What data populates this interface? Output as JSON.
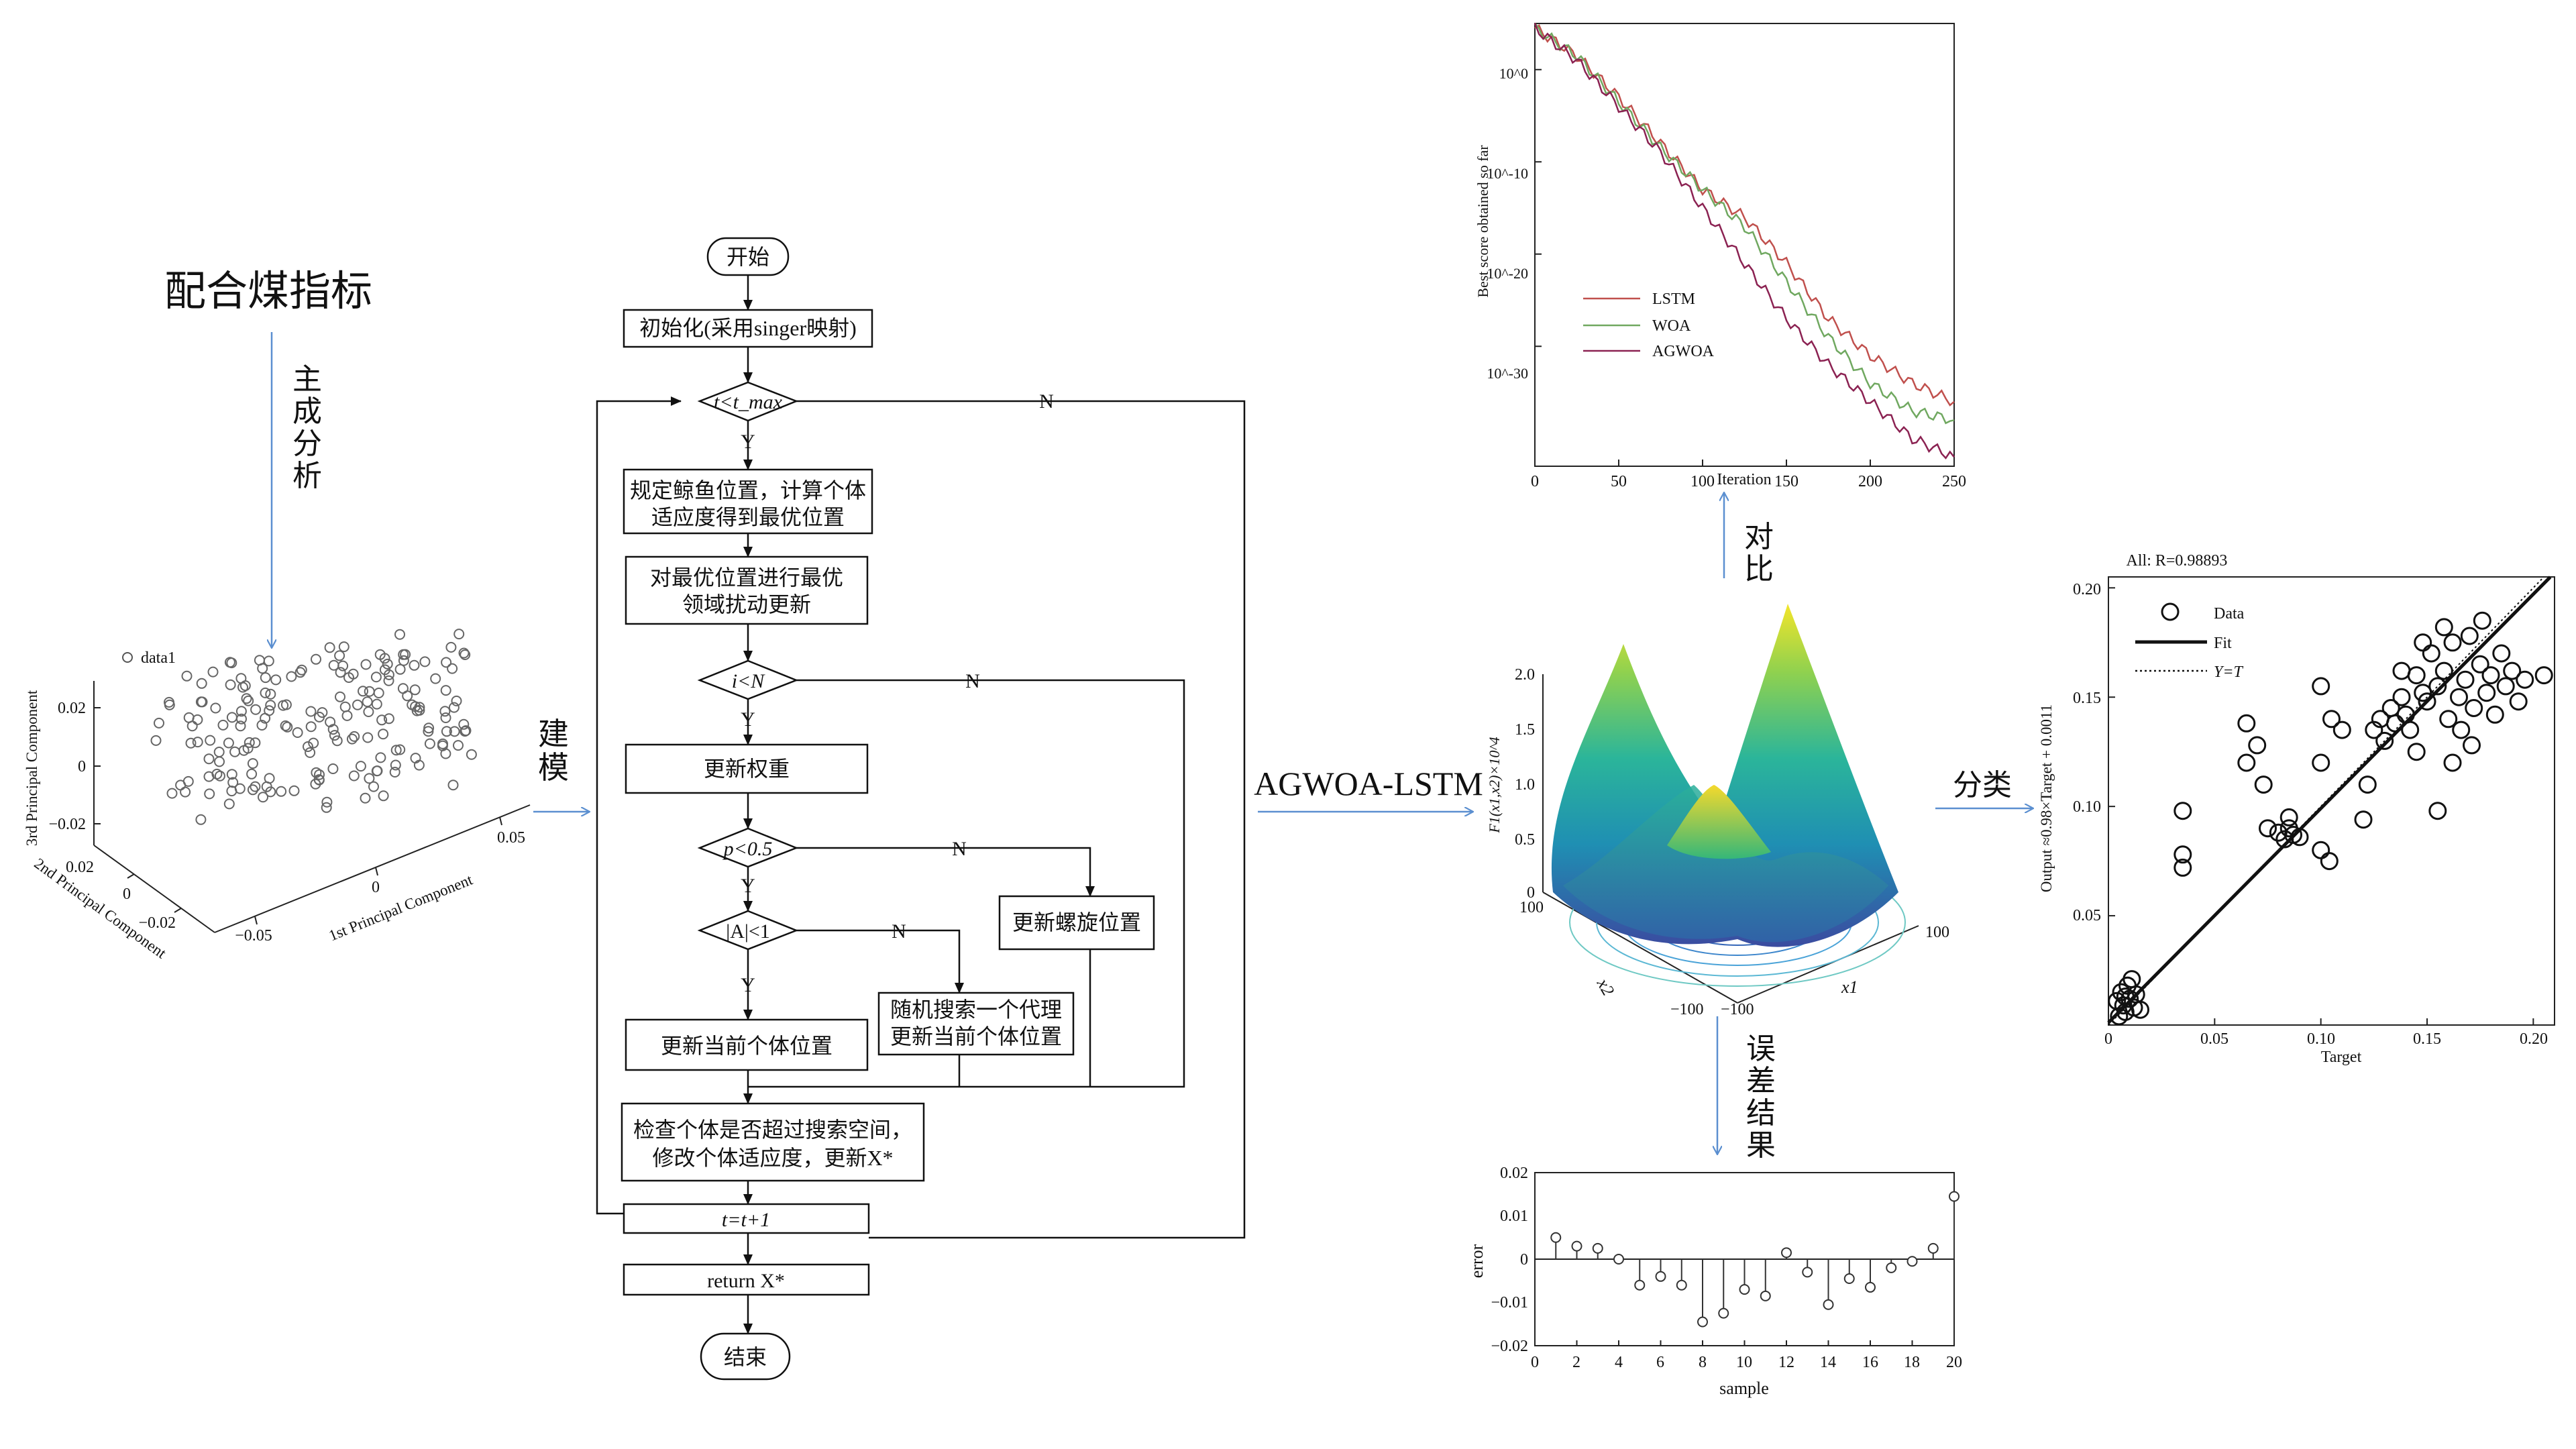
{
  "left": {
    "title": "配合煤指标",
    "pca_label": [
      "主",
      "成",
      "分",
      "析"
    ],
    "pca_chart": {
      "legend": "data1",
      "axis1_label": "1st Principal Component",
      "axis2_label": "2nd Principal Component",
      "axis3_label": "3rd Principal Component",
      "axis1_ticks": [
        "−0.05",
        "0",
        "0.05"
      ],
      "axis2_ticks": [
        "0.02",
        "0",
        "−0.02"
      ],
      "axis3_ticks": [
        "0.02",
        "0",
        "−0.02"
      ]
    },
    "model_label": [
      "建",
      "模"
    ]
  },
  "flowchart": {
    "start": "开始",
    "init": "初始化(采用singer映射)",
    "cond_t": "t<t_max",
    "step_whale": [
      "规定鲸鱼位置，计算个体",
      "适应度得到最优位置"
    ],
    "step_perturb": [
      "对最优位置进行最优",
      "领域扰动更新"
    ],
    "cond_i": "i<N",
    "update_weight": "更新权重",
    "cond_p": "p<0.5",
    "update_spiral": "更新螺旋位置",
    "cond_a": "|A|<1",
    "random_search": [
      "随机搜索一个代理",
      "更新当前个体位置"
    ],
    "update_current": "更新当前个体位置",
    "check": [
      "检查个体是否超过搜索空间，",
      "修改个体适应度，更新X*"
    ],
    "t_incr": "t=t+1",
    "return": "return X*",
    "end": "结束",
    "yes": "Y",
    "no": "N"
  },
  "middle": {
    "model_name": "AGWOA-LSTM",
    "compare_label": [
      "对",
      "比"
    ],
    "error_label": [
      "误",
      "差",
      "结",
      "果"
    ],
    "classify_label": "分类",
    "surface": {
      "zlabel": "F1(x1,x2)×10^4",
      "z_ticks": [
        "2.0",
        "1.5",
        "1.0",
        "0.5",
        "0"
      ],
      "x1_label": "x1",
      "x2_label": "x2",
      "x1_ticks": [
        "100",
        "−100"
      ],
      "x2_ticks": [
        "100",
        "−100"
      ]
    }
  },
  "chart_data": [
    {
      "type": "line",
      "xlabel": "Iteration",
      "ylabel": "Best score obtained so far",
      "xlim": [
        0,
        250
      ],
      "x_ticks": [
        "0",
        "50",
        "100",
        "150",
        "200",
        "250"
      ],
      "y_scale": "log",
      "y_ticks": [
        "10^0",
        "10^-10",
        "10^-20",
        "10^-30"
      ],
      "legend_position": "lower-left",
      "series": [
        {
          "name": "LSTM",
          "color": "#c0504d",
          "x": [
            0,
            25,
            50,
            75,
            100,
            125,
            150,
            175,
            200,
            225,
            250
          ],
          "y_log10": [
            4.5,
            1.5,
            -3,
            -8,
            -13,
            -16,
            -21,
            -27,
            -31,
            -34,
            -36
          ]
        },
        {
          "name": "WOA",
          "color": "#70a860",
          "x": [
            0,
            25,
            50,
            75,
            100,
            125,
            150,
            175,
            200,
            225,
            250
          ],
          "y_log10": [
            4.5,
            1.5,
            -3.5,
            -8.5,
            -13,
            -17,
            -23,
            -29,
            -34,
            -37,
            -38
          ]
        },
        {
          "name": "AGWOA",
          "color": "#8b2252",
          "x": [
            0,
            25,
            50,
            75,
            100,
            125,
            150,
            175,
            200,
            225,
            250
          ],
          "y_log10": [
            4.5,
            1,
            -4,
            -9,
            -15,
            -21,
            -27,
            -32,
            -36,
            -40,
            -42
          ]
        }
      ]
    },
    {
      "type": "scatter",
      "title": "All: R=0.98893",
      "xlabel": "Target",
      "ylabel": "Output ≈0.98×Target + 0.0011",
      "xlim": [
        0,
        0.21
      ],
      "ylim": [
        0,
        0.205
      ],
      "x_ticks": [
        "0",
        "0.05",
        "0.10",
        "0.15",
        "0.20"
      ],
      "y_ticks": [
        "0.05",
        "0.10",
        "0.15",
        "0.20"
      ],
      "legend": [
        "Data",
        "Fit",
        "Y=T"
      ],
      "legend_position": "top-left",
      "fit": {
        "slope": 0.98,
        "intercept": 0.0011
      },
      "points": [
        [
          0.005,
          0.004
        ],
        [
          0.007,
          0.009
        ],
        [
          0.008,
          0.006
        ],
        [
          0.01,
          0.012
        ],
        [
          0.006,
          0.015
        ],
        [
          0.012,
          0.008
        ],
        [
          0.009,
          0.018
        ],
        [
          0.011,
          0.021
        ],
        [
          0.004,
          0.011
        ],
        [
          0.013,
          0.014
        ],
        [
          0.015,
          0.007
        ],
        [
          0.008,
          0.013
        ],
        [
          0.035,
          0.098
        ],
        [
          0.035,
          0.078
        ],
        [
          0.035,
          0.072
        ],
        [
          0.065,
          0.138
        ],
        [
          0.065,
          0.12
        ],
        [
          0.07,
          0.128
        ],
        [
          0.073,
          0.11
        ],
        [
          0.075,
          0.09
        ],
        [
          0.08,
          0.088
        ],
        [
          0.083,
          0.085
        ],
        [
          0.085,
          0.09
        ],
        [
          0.087,
          0.087
        ],
        [
          0.09,
          0.086
        ],
        [
          0.085,
          0.095
        ],
        [
          0.1,
          0.12
        ],
        [
          0.1,
          0.155
        ],
        [
          0.1,
          0.08
        ],
        [
          0.104,
          0.075
        ],
        [
          0.105,
          0.14
        ],
        [
          0.11,
          0.135
        ],
        [
          0.12,
          0.094
        ],
        [
          0.122,
          0.11
        ],
        [
          0.125,
          0.135
        ],
        [
          0.128,
          0.14
        ],
        [
          0.13,
          0.13
        ],
        [
          0.133,
          0.145
        ],
        [
          0.135,
          0.138
        ],
        [
          0.138,
          0.15
        ],
        [
          0.14,
          0.142
        ],
        [
          0.142,
          0.135
        ],
        [
          0.145,
          0.16
        ],
        [
          0.148,
          0.152
        ],
        [
          0.15,
          0.148
        ],
        [
          0.152,
          0.17
        ],
        [
          0.155,
          0.155
        ],
        [
          0.158,
          0.162
        ],
        [
          0.16,
          0.14
        ],
        [
          0.162,
          0.175
        ],
        [
          0.165,
          0.15
        ],
        [
          0.166,
          0.135
        ],
        [
          0.168,
          0.158
        ],
        [
          0.17,
          0.178
        ],
        [
          0.172,
          0.145
        ],
        [
          0.175,
          0.165
        ],
        [
          0.178,
          0.152
        ],
        [
          0.18,
          0.16
        ],
        [
          0.182,
          0.142
        ],
        [
          0.185,
          0.17
        ],
        [
          0.187,
          0.155
        ],
        [
          0.19,
          0.162
        ],
        [
          0.193,
          0.148
        ],
        [
          0.196,
          0.158
        ],
        [
          0.205,
          0.16
        ],
        [
          0.155,
          0.098
        ],
        [
          0.145,
          0.125
        ],
        [
          0.158,
          0.182
        ],
        [
          0.148,
          0.175
        ],
        [
          0.162,
          0.12
        ],
        [
          0.176,
          0.185
        ],
        [
          0.138,
          0.162
        ],
        [
          0.171,
          0.128
        ]
      ]
    },
    {
      "type": "stem",
      "xlabel": "sample",
      "ylabel": "error",
      "xlim": [
        0,
        20
      ],
      "ylim": [
        -0.02,
        0.02
      ],
      "x_ticks": [
        "0",
        "2",
        "4",
        "6",
        "8",
        "10",
        "12",
        "14",
        "16",
        "18",
        "20"
      ],
      "y_ticks": [
        "0.02",
        "0.01",
        "0",
        "−0.01",
        "−0.02"
      ],
      "x": [
        1,
        2,
        3,
        4,
        5,
        6,
        7,
        8,
        9,
        10,
        11,
        12,
        13,
        14,
        15,
        16,
        17,
        18,
        19,
        20
      ],
      "values": [
        0.005,
        0.003,
        0.0025,
        0,
        -0.006,
        -0.004,
        -0.006,
        -0.0145,
        -0.0125,
        -0.007,
        -0.0085,
        0.0015,
        -0.003,
        -0.0105,
        -0.0045,
        -0.0065,
        -0.002,
        -0.0005,
        0.0025,
        0.0145
      ]
    }
  ]
}
